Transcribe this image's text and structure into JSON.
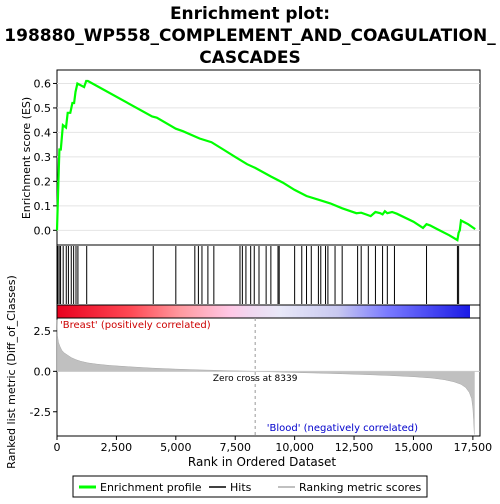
{
  "chart_data": {
    "type": "line",
    "title_lines": [
      "Enrichment plot:",
      "198880_WP558_COMPLEMENT_AND_COAGULATION_",
      "CASCADES"
    ],
    "top_panel": {
      "ylabel": "Enrichment score (ES)",
      "ylim": [
        -0.06,
        0.655
      ],
      "yticks": [
        "0.6",
        "0.5",
        "0.4",
        "0.3",
        "0.2",
        "0.1",
        "0.0"
      ],
      "ytick_values": [
        0.6,
        0.5,
        0.4,
        0.3,
        0.2,
        0.1,
        0.0
      ],
      "series": [
        {
          "name": "Enrichment profile",
          "color": "#00ff00",
          "x": [
            0,
            60,
            100,
            160,
            250,
            380,
            450,
            560,
            650,
            720,
            780,
            860,
            1140,
            1230,
            1300,
            4000,
            4200,
            5000,
            5300,
            6000,
            6500,
            7000,
            7500,
            8000,
            8339,
            9000,
            9500,
            10000,
            10500,
            11000,
            11500,
            12000,
            12600,
            12800,
            13000,
            13200,
            13400,
            13600,
            13700,
            13800,
            13900,
            14100,
            14300,
            15000,
            15400,
            15550,
            15700,
            16000,
            16500,
            16850,
            16900,
            16950,
            17000,
            17300,
            17600
          ],
          "y": [
            0.0,
            0.2,
            0.33,
            0.33,
            0.43,
            0.42,
            0.48,
            0.48,
            0.52,
            0.52,
            0.565,
            0.6,
            0.585,
            0.61,
            0.61,
            0.465,
            0.46,
            0.415,
            0.405,
            0.375,
            0.36,
            0.33,
            0.3,
            0.27,
            0.255,
            0.22,
            0.195,
            0.165,
            0.14,
            0.125,
            0.11,
            0.09,
            0.07,
            0.072,
            0.065,
            0.058,
            0.075,
            0.07,
            0.065,
            0.078,
            0.07,
            0.075,
            0.068,
            0.035,
            0.01,
            0.025,
            0.02,
            0.005,
            -0.02,
            -0.04,
            -0.01,
            0.0,
            0.04,
            0.025,
            0.005
          ]
        }
      ]
    },
    "hits": [
      30,
      90,
      150,
      260,
      390,
      480,
      600,
      700,
      800,
      880,
      1250,
      4050,
      5000,
      5800,
      5950,
      6100,
      6350,
      6600,
      7700,
      7800,
      7950,
      8150,
      8300,
      8500,
      8800,
      9000,
      9300,
      9350,
      10000,
      10300,
      10500,
      10700,
      11000,
      11100,
      11300,
      11400,
      11700,
      12000,
      12650,
      12800,
      13100,
      13400,
      13700,
      13900,
      14200,
      15550,
      16850,
      16900
    ],
    "heatmap": {
      "positive_label": "'Breast' (positively correlated)",
      "negative_label": "'Blood' (negatively correlated)"
    },
    "bottom_panel": {
      "ylabel": "Ranked list metric (Diff_of_Classes)",
      "xlabel": "Rank in Ordered Dataset",
      "ylim": [
        -4.0,
        3.3
      ],
      "yticks": [
        "2.5",
        "0.0",
        "-2.5"
      ],
      "ytick_values": [
        2.5,
        0.0,
        -2.5
      ],
      "xlim": [
        0,
        17800
      ],
      "xticks": [
        "0",
        "2,500",
        "5,000",
        "7,500",
        "10,000",
        "12,500",
        "15,000",
        "17,500"
      ],
      "xtick_values": [
        0,
        2500,
        5000,
        7500,
        10000,
        12500,
        15000,
        17500
      ],
      "zero_cross_label": "Zero cross at 8339",
      "zero_cross": 8339,
      "metric_x": [
        0,
        20,
        60,
        120,
        200,
        300,
        450,
        600,
        800,
        1000,
        1300,
        1700,
        2200,
        3000,
        4000,
        5000,
        6000,
        7000,
        8000,
        8339,
        9000,
        10000,
        11000,
        12000,
        13000,
        14000,
        15000,
        15800,
        16300,
        16700,
        17000,
        17200,
        17350,
        17450,
        17500,
        17530,
        17560
      ],
      "metric_y": [
        3.2,
        2.2,
        1.8,
        1.55,
        1.3,
        1.15,
        1.0,
        0.85,
        0.72,
        0.62,
        0.52,
        0.44,
        0.37,
        0.29,
        0.2,
        0.14,
        0.09,
        0.05,
        0.015,
        0.0,
        -0.03,
        -0.07,
        -0.11,
        -0.15,
        -0.2,
        -0.26,
        -0.33,
        -0.42,
        -0.52,
        -0.65,
        -0.8,
        -1.0,
        -1.3,
        -1.7,
        -2.3,
        -3.0,
        -3.9
      ]
    },
    "legend": [
      {
        "label": "Enrichment profile",
        "color": "#00ff00"
      },
      {
        "label": "Hits",
        "color": "#000000"
      },
      {
        "label": "Ranking metric scores",
        "color": "#c0c0c0"
      }
    ]
  }
}
